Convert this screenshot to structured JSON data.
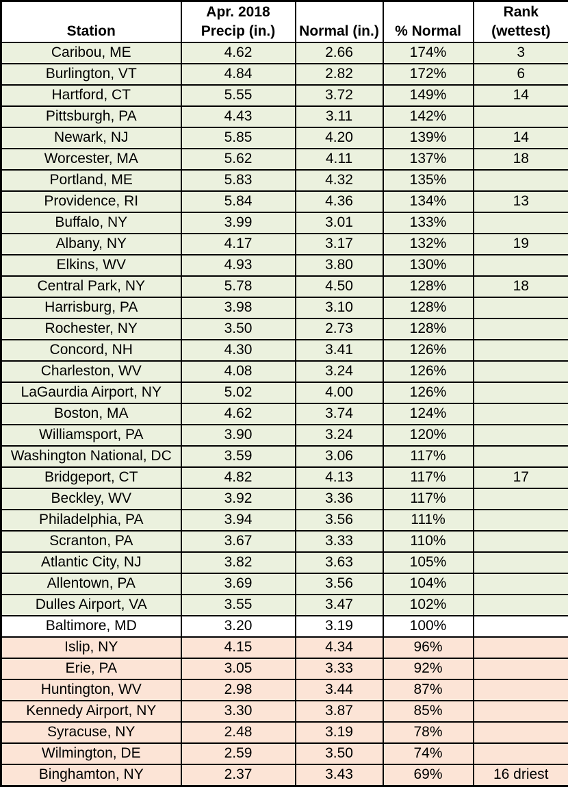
{
  "header": {
    "station": "Station",
    "precip": "Apr. 2018\nPrecip (in.)",
    "normal": "Normal (in.)",
    "pct": "% Normal",
    "rank": "Rank\n(wettest)"
  },
  "colors": {
    "row_bg": {
      "above": "#EBF1DE",
      "at": "#FFFFFF",
      "below": "#FCE4D6"
    },
    "border": "#000000",
    "text": "#000000"
  },
  "chart_data": {
    "type": "table",
    "columns": [
      "Station",
      "Apr. 2018 Precip (in.)",
      "Normal (in.)",
      "% Normal",
      "Rank (wettest)"
    ],
    "rows": [
      {
        "station": "Caribou, ME",
        "precip_in": "4.62",
        "normal_in": "2.66",
        "pct_normal": "174%",
        "rank": "3",
        "status": "above"
      },
      {
        "station": "Burlington, VT",
        "precip_in": "4.84",
        "normal_in": "2.82",
        "pct_normal": "172%",
        "rank": "6",
        "status": "above"
      },
      {
        "station": "Hartford, CT",
        "precip_in": "5.55",
        "normal_in": "3.72",
        "pct_normal": "149%",
        "rank": "14",
        "status": "above"
      },
      {
        "station": "Pittsburgh, PA",
        "precip_in": "4.43",
        "normal_in": "3.11",
        "pct_normal": "142%",
        "rank": "",
        "status": "above"
      },
      {
        "station": "Newark, NJ",
        "precip_in": "5.85",
        "normal_in": "4.20",
        "pct_normal": "139%",
        "rank": "14",
        "status": "above"
      },
      {
        "station": "Worcester, MA",
        "precip_in": "5.62",
        "normal_in": "4.11",
        "pct_normal": "137%",
        "rank": "18",
        "status": "above"
      },
      {
        "station": "Portland, ME",
        "precip_in": "5.83",
        "normal_in": "4.32",
        "pct_normal": "135%",
        "rank": "",
        "status": "above"
      },
      {
        "station": "Providence, RI",
        "precip_in": "5.84",
        "normal_in": "4.36",
        "pct_normal": "134%",
        "rank": "13",
        "status": "above"
      },
      {
        "station": "Buffalo, NY",
        "precip_in": "3.99",
        "normal_in": "3.01",
        "pct_normal": "133%",
        "rank": "",
        "status": "above"
      },
      {
        "station": "Albany, NY",
        "precip_in": "4.17",
        "normal_in": "3.17",
        "pct_normal": "132%",
        "rank": "19",
        "status": "above"
      },
      {
        "station": "Elkins, WV",
        "precip_in": "4.93",
        "normal_in": "3.80",
        "pct_normal": "130%",
        "rank": "",
        "status": "above"
      },
      {
        "station": "Central Park, NY",
        "precip_in": "5.78",
        "normal_in": "4.50",
        "pct_normal": "128%",
        "rank": "18",
        "status": "above"
      },
      {
        "station": "Harrisburg, PA",
        "precip_in": "3.98",
        "normal_in": "3.10",
        "pct_normal": "128%",
        "rank": "",
        "status": "above"
      },
      {
        "station": "Rochester, NY",
        "precip_in": "3.50",
        "normal_in": "2.73",
        "pct_normal": "128%",
        "rank": "",
        "status": "above"
      },
      {
        "station": "Concord, NH",
        "precip_in": "4.30",
        "normal_in": "3.41",
        "pct_normal": "126%",
        "rank": "",
        "status": "above"
      },
      {
        "station": "Charleston, WV",
        "precip_in": "4.08",
        "normal_in": "3.24",
        "pct_normal": "126%",
        "rank": "",
        "status": "above"
      },
      {
        "station": "LaGaurdia Airport, NY",
        "precip_in": "5.02",
        "normal_in": "4.00",
        "pct_normal": "126%",
        "rank": "",
        "status": "above"
      },
      {
        "station": "Boston, MA",
        "precip_in": "4.62",
        "normal_in": "3.74",
        "pct_normal": "124%",
        "rank": "",
        "status": "above"
      },
      {
        "station": "Williamsport, PA",
        "precip_in": "3.90",
        "normal_in": "3.24",
        "pct_normal": "120%",
        "rank": "",
        "status": "above"
      },
      {
        "station": "Washington National, DC",
        "precip_in": "3.59",
        "normal_in": "3.06",
        "pct_normal": "117%",
        "rank": "",
        "status": "above"
      },
      {
        "station": "Bridgeport, CT",
        "precip_in": "4.82",
        "normal_in": "4.13",
        "pct_normal": "117%",
        "rank": "17",
        "status": "above"
      },
      {
        "station": "Beckley, WV",
        "precip_in": "3.92",
        "normal_in": "3.36",
        "pct_normal": "117%",
        "rank": "",
        "status": "above"
      },
      {
        "station": "Philadelphia, PA",
        "precip_in": "3.94",
        "normal_in": "3.56",
        "pct_normal": "111%",
        "rank": "",
        "status": "above"
      },
      {
        "station": "Scranton, PA",
        "precip_in": "3.67",
        "normal_in": "3.33",
        "pct_normal": "110%",
        "rank": "",
        "status": "above"
      },
      {
        "station": "Atlantic City, NJ",
        "precip_in": "3.82",
        "normal_in": "3.63",
        "pct_normal": "105%",
        "rank": "",
        "status": "above"
      },
      {
        "station": "Allentown, PA",
        "precip_in": "3.69",
        "normal_in": "3.56",
        "pct_normal": "104%",
        "rank": "",
        "status": "above"
      },
      {
        "station": "Dulles Airport, VA",
        "precip_in": "3.55",
        "normal_in": "3.47",
        "pct_normal": "102%",
        "rank": "",
        "status": "above"
      },
      {
        "station": "Baltimore, MD",
        "precip_in": "3.20",
        "normal_in": "3.19",
        "pct_normal": "100%",
        "rank": "",
        "status": "at"
      },
      {
        "station": "Islip, NY",
        "precip_in": "4.15",
        "normal_in": "4.34",
        "pct_normal": "96%",
        "rank": "",
        "status": "below"
      },
      {
        "station": "Erie, PA",
        "precip_in": "3.05",
        "normal_in": "3.33",
        "pct_normal": "92%",
        "rank": "",
        "status": "below"
      },
      {
        "station": "Huntington, WV",
        "precip_in": "2.98",
        "normal_in": "3.44",
        "pct_normal": "87%",
        "rank": "",
        "status": "below"
      },
      {
        "station": "Kennedy Airport, NY",
        "precip_in": "3.30",
        "normal_in": "3.87",
        "pct_normal": "85%",
        "rank": "",
        "status": "below"
      },
      {
        "station": "Syracuse, NY",
        "precip_in": "2.48",
        "normal_in": "3.19",
        "pct_normal": "78%",
        "rank": "",
        "status": "below"
      },
      {
        "station": "Wilmington, DE",
        "precip_in": "2.59",
        "normal_in": "3.50",
        "pct_normal": "74%",
        "rank": "",
        "status": "below"
      },
      {
        "station": "Binghamton, NY",
        "precip_in": "2.37",
        "normal_in": "3.43",
        "pct_normal": "69%",
        "rank": "16 driest",
        "status": "below"
      }
    ]
  }
}
